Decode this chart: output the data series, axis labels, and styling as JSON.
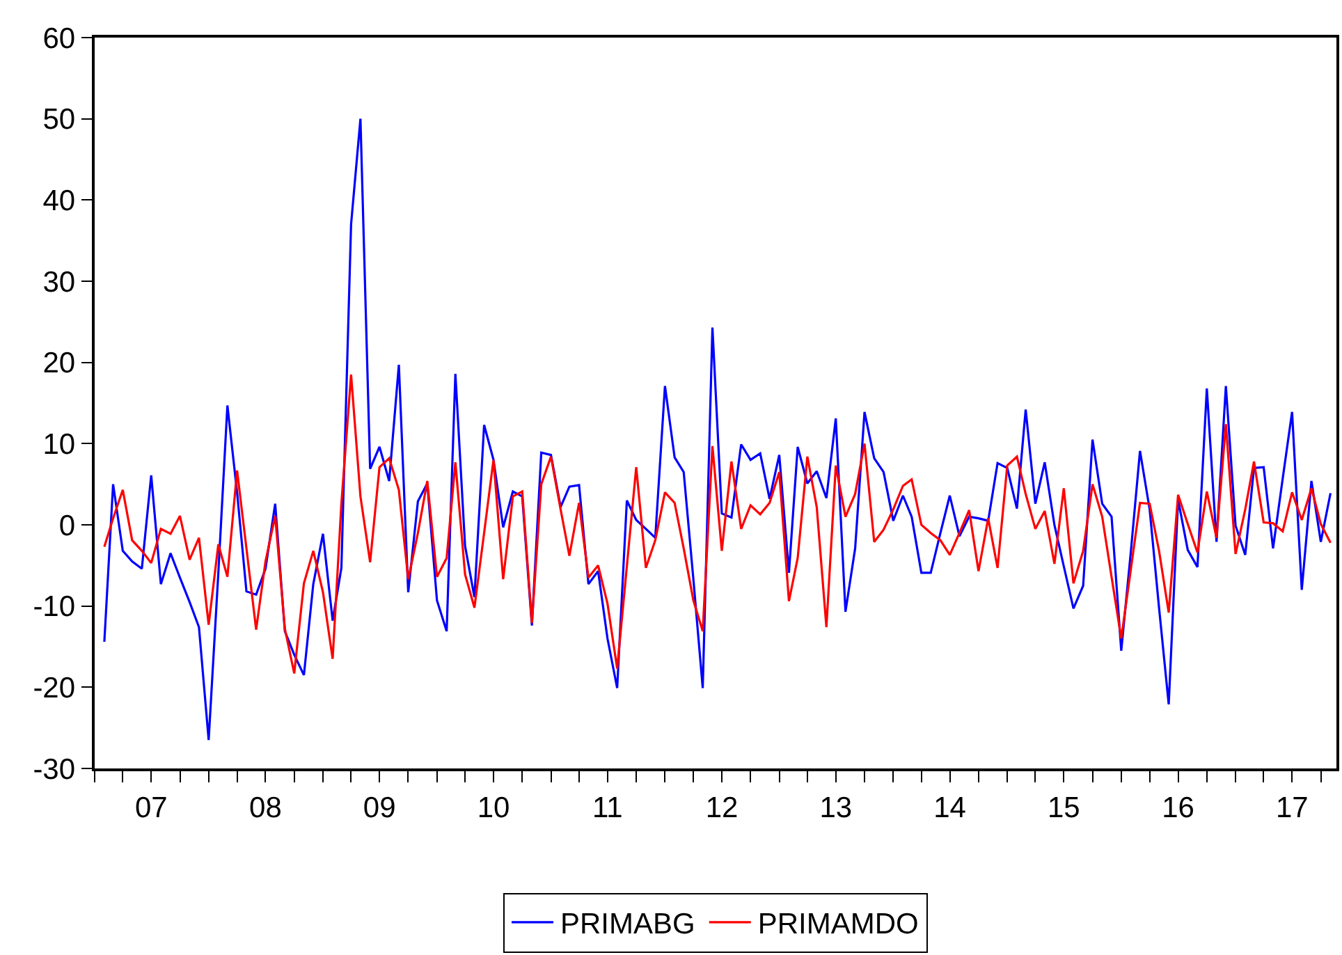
{
  "chart_data": {
    "type": "line",
    "x": [
      "2007-02",
      "2007-03",
      "2007-04",
      "2007-05",
      "2007-06",
      "2007-07",
      "2007-08",
      "2007-09",
      "2007-10",
      "2007-11",
      "2007-12",
      "2008-01",
      "2008-02",
      "2008-03",
      "2008-04",
      "2008-05",
      "2008-06",
      "2008-07",
      "2008-08",
      "2008-09",
      "2008-10",
      "2008-11",
      "2008-12",
      "2009-01",
      "2009-02",
      "2009-03",
      "2009-04",
      "2009-05",
      "2009-06",
      "2009-07",
      "2009-08",
      "2009-09",
      "2009-10",
      "2009-11",
      "2009-12",
      "2010-01",
      "2010-02",
      "2010-03",
      "2010-04",
      "2010-05",
      "2010-06",
      "2010-07",
      "2010-08",
      "2010-09",
      "2010-10",
      "2010-11",
      "2010-12",
      "2011-01",
      "2011-02",
      "2011-03",
      "2011-04",
      "2011-05",
      "2011-06",
      "2011-07",
      "2011-08",
      "2011-09",
      "2011-10",
      "2011-11",
      "2011-12",
      "2012-01",
      "2012-02",
      "2012-03",
      "2012-04",
      "2012-05",
      "2012-06",
      "2012-07",
      "2012-08",
      "2012-09",
      "2012-10",
      "2012-11",
      "2012-12",
      "2013-01",
      "2013-02",
      "2013-03",
      "2013-04",
      "2013-05",
      "2013-06",
      "2013-07",
      "2013-08",
      "2013-09",
      "2013-10",
      "2013-11",
      "2013-12",
      "2014-01",
      "2014-02",
      "2014-03",
      "2014-04",
      "2014-05",
      "2014-06",
      "2014-07",
      "2014-08",
      "2014-09",
      "2014-10",
      "2014-11",
      "2014-12",
      "2015-01",
      "2015-02",
      "2015-03",
      "2015-04",
      "2015-05",
      "2015-06",
      "2015-07",
      "2015-08",
      "2015-09",
      "2015-10",
      "2015-11",
      "2015-12",
      "2016-01",
      "2016-02",
      "2016-03",
      "2016-04",
      "2016-05",
      "2016-06",
      "2016-07",
      "2016-08",
      "2016-09",
      "2016-10",
      "2016-11",
      "2016-12",
      "2017-01",
      "2017-02",
      "2017-03",
      "2017-04",
      "2017-05",
      "2017-06",
      "2017-07",
      "2017-08",
      "2017-09",
      "2017-10",
      "2017-11"
    ],
    "series": [
      {
        "name": "PRIMABG",
        "color": "#0000ff",
        "values": [
          -14.4,
          5.0,
          -3.2,
          -4.5,
          -5.4,
          6.1,
          -7.3,
          -3.5,
          -6.5,
          -9.5,
          -12.6,
          -26.5,
          -5.9,
          14.7,
          4.0,
          -8.2,
          -8.6,
          -5.4,
          2.6,
          -13.1,
          -16,
          -18.5,
          -7.3,
          -1.1,
          -11.8,
          -5.3,
          37,
          50,
          6.9,
          9.6,
          5.4,
          19.7,
          -8.3,
          2.9,
          5.1,
          -9.3,
          -13.1,
          18.6,
          -2.6,
          -8.9,
          12.3,
          8.0,
          -0.3,
          4.1,
          3.5,
          -12.4,
          8.9,
          8.6,
          2.2,
          4.7,
          4.9,
          -7.3,
          -5.7,
          -14,
          -20.1,
          3.0,
          0.6,
          -0.5,
          -1.6,
          17.1,
          8.3,
          6.5,
          -6.7,
          -20.1,
          24.3,
          1.4,
          0.9,
          9.9,
          8.0,
          8.8,
          3.2,
          8.6,
          -5.9,
          9.6,
          5.1,
          6.6,
          3.3,
          13.1,
          -10.7,
          -2.9,
          13.9,
          8.2,
          6.5,
          0.5,
          3.6,
          1.0,
          -5.9,
          -5.9,
          -1.0,
          3.6,
          -1.4,
          1.0,
          0.8,
          0.5,
          7.6,
          7.0,
          2.0,
          14.2,
          2.6,
          7.7,
          0,
          -5.1,
          -10.3,
          -7.5,
          10.5,
          2.6,
          1.0,
          -15.5,
          -3.2,
          9.1,
          1.9,
          -10.2,
          -22.1,
          3.1,
          -3.1,
          -5.2,
          16.8,
          -2.1,
          17.1,
          -0.1,
          -3.7,
          7.0,
          7.1,
          -2.9,
          5.7,
          13.9,
          -8.0,
          5.4,
          -2.1,
          3.9
        ]
      },
      {
        "name": "PRIMAMDO",
        "color": "#ff0000",
        "values": [
          -2.7,
          0.8,
          4.3,
          -1.9,
          -3.2,
          -4.7,
          -0.5,
          -1.1,
          1.1,
          -4.3,
          -1.6,
          -12.3,
          -2.4,
          -6.4,
          6.7,
          -2.9,
          -12.9,
          -4.5,
          1.1,
          -12.8,
          -18.3,
          -7.2,
          -3.2,
          -8.3,
          -16.5,
          2.6,
          18.5,
          3.5,
          -4.6,
          7.1,
          8.2,
          4.3,
          -6.7,
          -1.0,
          5.4,
          -6.4,
          -4.1,
          7.7,
          -6.1,
          -10.2,
          -1.0,
          8.0,
          -6.7,
          3.5,
          4.1,
          -12.1,
          5.0,
          8.4,
          1.9,
          -3.8,
          2.7,
          -6.5,
          -5.0,
          -9.7,
          -17.7,
          -5.1,
          7.1,
          -5.3,
          -1.9,
          4.0,
          2.7,
          -2.9,
          -9.3,
          -13.1,
          9.7,
          -3.2,
          7.8,
          -0.5,
          2.4,
          1.3,
          2.7,
          6.5,
          -9.4,
          -4.1,
          8.4,
          2.2,
          -12.6,
          7.3,
          1.0,
          3.8,
          10.0,
          -2.1,
          -0.6,
          1.9,
          4.8,
          5.6,
          0,
          -1.0,
          -1.9,
          -3.7,
          -1.0,
          1.8,
          -5.7,
          0.8,
          -5.3,
          7.3,
          8.4,
          3.8,
          -0.5,
          1.7,
          -4.8,
          4.5,
          -7.2,
          -3.2,
          5.0,
          1.0,
          -6.4,
          -14.0,
          -5.4,
          2.7,
          2.6,
          -3.2,
          -10.8,
          3.7,
          0.1,
          -3.4,
          4.1,
          -1.6,
          12.4,
          -3.6,
          1.9,
          7.8,
          0.3,
          0.2,
          -0.8,
          4.0,
          0.6,
          4.5,
          0.1,
          -2.2
        ]
      }
    ],
    "xlim": [
      "2007-01-01",
      "2017-11-20"
    ],
    "xticks": [
      {
        "value": "2007-01",
        "label": null
      },
      {
        "value": "2007-04",
        "label": null
      },
      {
        "value": "2007-07",
        "label": "07"
      },
      {
        "value": "2007-10",
        "label": null
      },
      {
        "value": "2008-01",
        "label": null
      },
      {
        "value": "2008-04",
        "label": null
      },
      {
        "value": "2008-07",
        "label": "08"
      },
      {
        "value": "2008-10",
        "label": null
      },
      {
        "value": "2009-01",
        "label": null
      },
      {
        "value": "2009-04",
        "label": null
      },
      {
        "value": "2009-07",
        "label": "09"
      },
      {
        "value": "2009-10",
        "label": null
      },
      {
        "value": "2010-01",
        "label": null
      },
      {
        "value": "2010-04",
        "label": null
      },
      {
        "value": "2010-07",
        "label": "10"
      },
      {
        "value": "2010-10",
        "label": null
      },
      {
        "value": "2011-01",
        "label": null
      },
      {
        "value": "2011-04",
        "label": null
      },
      {
        "value": "2011-07",
        "label": "11"
      },
      {
        "value": "2011-10",
        "label": null
      },
      {
        "value": "2012-01",
        "label": null
      },
      {
        "value": "2012-04",
        "label": null
      },
      {
        "value": "2012-07",
        "label": "12"
      },
      {
        "value": "2012-10",
        "label": null
      },
      {
        "value": "2013-01",
        "label": null
      },
      {
        "value": "2013-04",
        "label": null
      },
      {
        "value": "2013-07",
        "label": "13"
      },
      {
        "value": "2013-10",
        "label": null
      },
      {
        "value": "2014-01",
        "label": null
      },
      {
        "value": "2014-04",
        "label": null
      },
      {
        "value": "2014-07",
        "label": "14"
      },
      {
        "value": "2014-10",
        "label": null
      },
      {
        "value": "2015-01",
        "label": null
      },
      {
        "value": "2015-04",
        "label": null
      },
      {
        "value": "2015-07",
        "label": "15"
      },
      {
        "value": "2015-10",
        "label": null
      },
      {
        "value": "2016-01",
        "label": null
      },
      {
        "value": "2016-04",
        "label": null
      },
      {
        "value": "2016-07",
        "label": "16"
      },
      {
        "value": "2016-10",
        "label": null
      },
      {
        "value": "2017-01",
        "label": null
      },
      {
        "value": "2017-04",
        "label": null
      },
      {
        "value": "2017-07",
        "label": "17"
      },
      {
        "value": "2017-10",
        "label": null
      }
    ],
    "ylim": [
      -30,
      60
    ],
    "yticks": [
      -30,
      -20,
      -10,
      0,
      10,
      20,
      30,
      40,
      50,
      60
    ],
    "legend": "bottom",
    "marker": "none",
    "line_style": "solid"
  }
}
